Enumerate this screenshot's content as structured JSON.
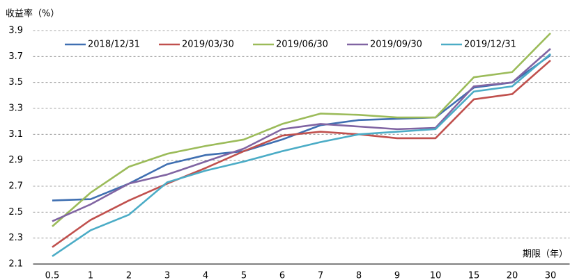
{
  "chart_data": {
    "type": "line",
    "y_label": "收益率（%）",
    "x_label": "期限（年）",
    "categories": [
      "0.5",
      "1",
      "2",
      "3",
      "4",
      "5",
      "6",
      "7",
      "8",
      "9",
      "10",
      "15",
      "20",
      "30"
    ],
    "series": [
      {
        "name": "2018/12/31",
        "color": "#3f6fb1",
        "values": [
          2.59,
          2.6,
          2.72,
          2.87,
          2.94,
          2.97,
          3.06,
          3.17,
          3.21,
          3.22,
          3.23,
          3.46,
          3.5,
          3.71
        ]
      },
      {
        "name": "2019/03/30",
        "color": "#c0504d",
        "values": [
          2.23,
          2.44,
          2.59,
          2.72,
          2.84,
          2.97,
          3.09,
          3.12,
          3.1,
          3.07,
          3.07,
          3.37,
          3.41,
          3.67
        ]
      },
      {
        "name": "2019/06/30",
        "color": "#9bbb59",
        "values": [
          2.39,
          2.65,
          2.85,
          2.95,
          3.01,
          3.06,
          3.18,
          3.26,
          3.25,
          3.23,
          3.23,
          3.54,
          3.58,
          3.88
        ]
      },
      {
        "name": "2019/09/30",
        "color": "#8064a2",
        "values": [
          2.43,
          2.56,
          2.72,
          2.79,
          2.89,
          2.99,
          3.14,
          3.18,
          3.16,
          3.14,
          3.15,
          3.47,
          3.5,
          3.76
        ]
      },
      {
        "name": "2019/12/31",
        "color": "#4bacc6",
        "values": [
          2.16,
          2.36,
          2.48,
          2.73,
          2.82,
          2.89,
          2.97,
          3.04,
          3.1,
          3.12,
          3.14,
          3.43,
          3.47,
          3.72
        ]
      }
    ],
    "ylim": [
      2.1,
      3.9
    ],
    "yticks": [
      2.1,
      2.3,
      2.5,
      2.7,
      2.9,
      3.1,
      3.3,
      3.5,
      3.7,
      3.9
    ],
    "grid": true,
    "legend": "top"
  }
}
